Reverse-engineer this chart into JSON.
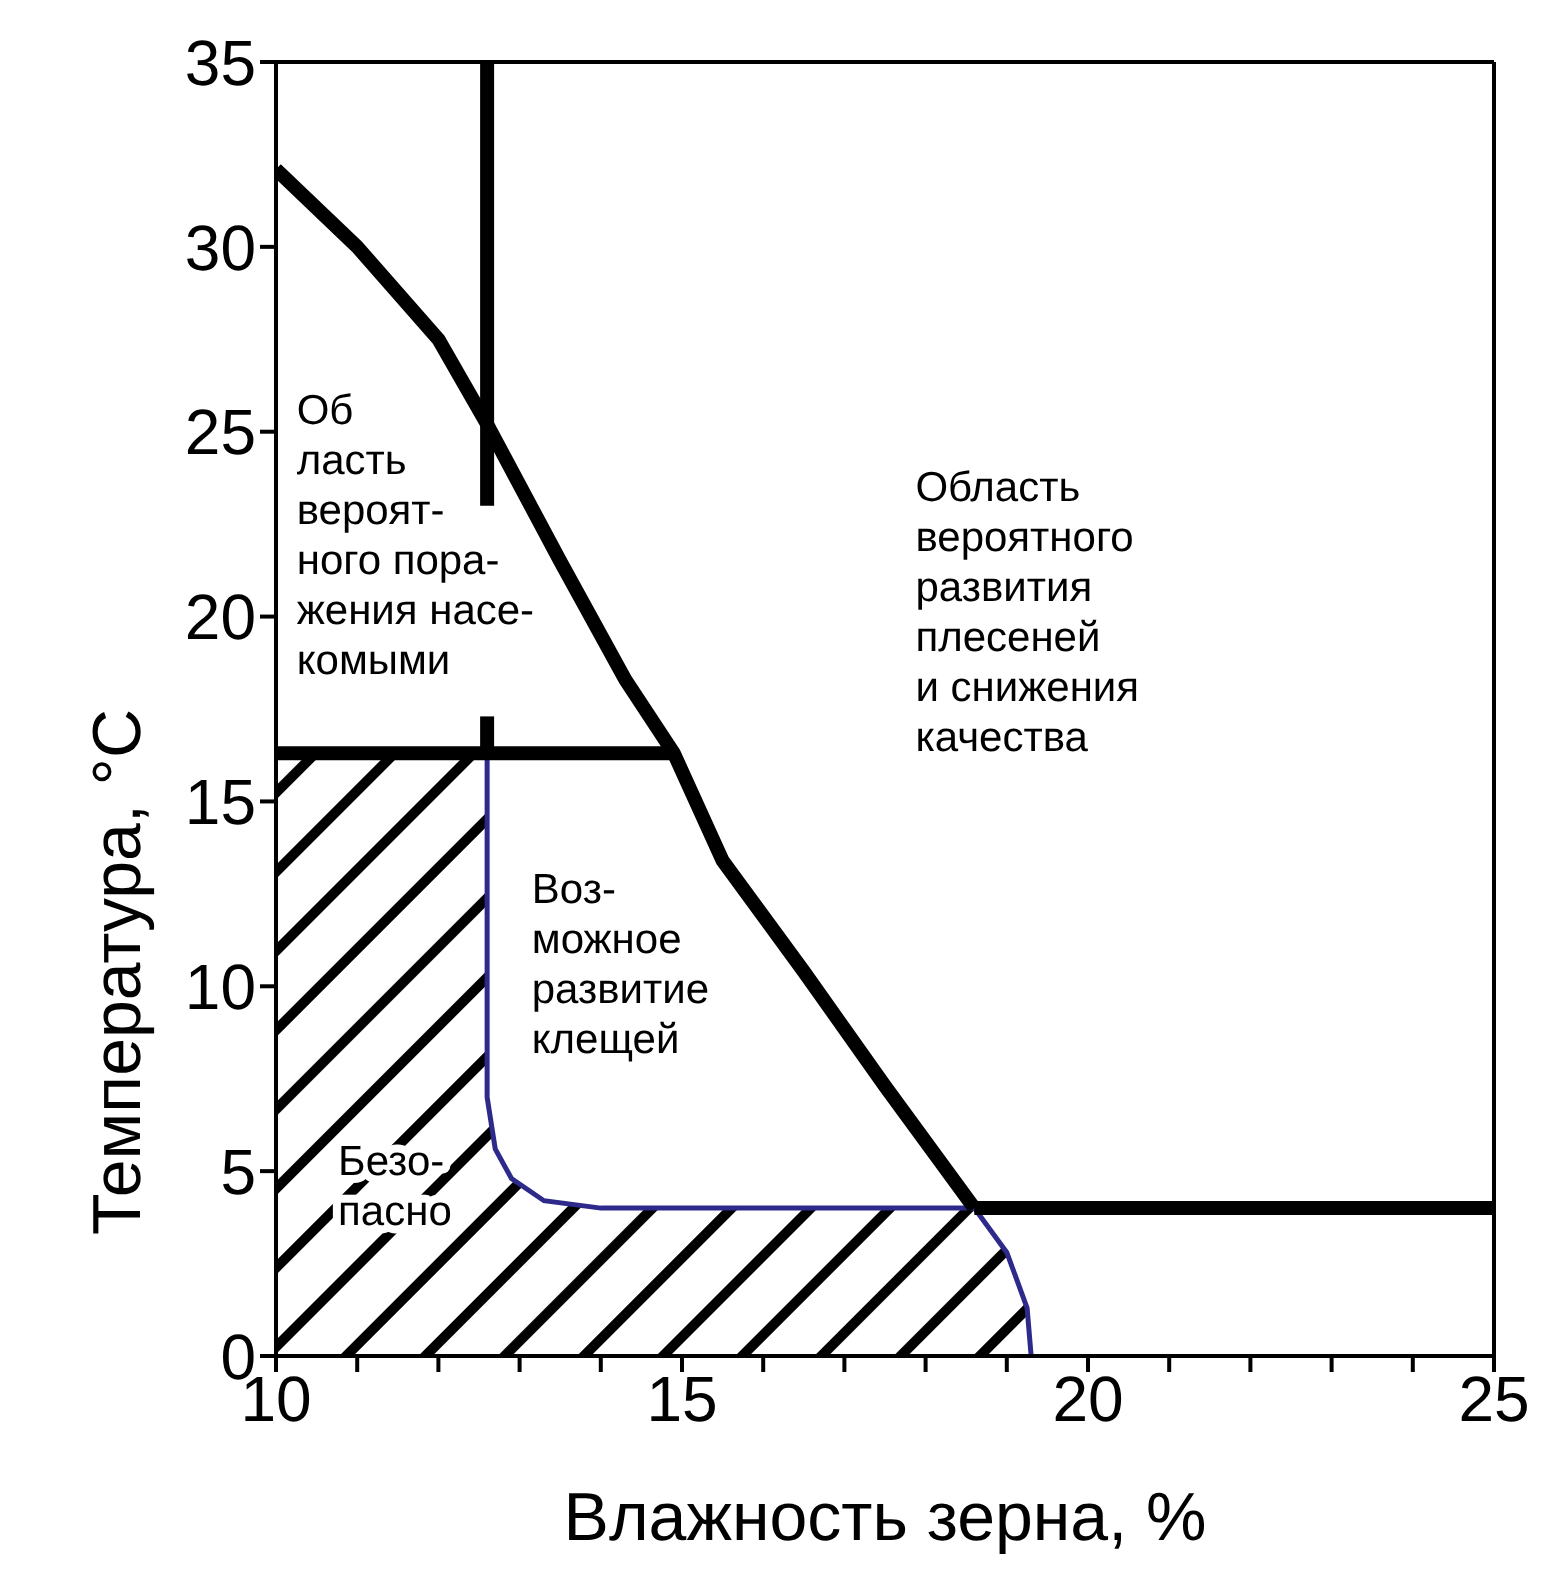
{
  "chart_data": {
    "type": "line",
    "xlabel": "Влажность зерна, %",
    "ylabel": "Температура, °C",
    "xlim": [
      10,
      25
    ],
    "ylim": [
      0,
      35
    ],
    "xticks": [
      10,
      {
        "value": 11,
        "label": null
      },
      {
        "value": 12,
        "label": null
      },
      {
        "value": 13,
        "label": null
      },
      {
        "value": 14,
        "label": null
      },
      15,
      {
        "value": 16,
        "label": null
      },
      {
        "value": 17,
        "label": null
      },
      {
        "value": 18,
        "label": null
      },
      {
        "value": 19,
        "label": null
      },
      20,
      {
        "value": 21,
        "label": null
      },
      {
        "value": 22,
        "label": null
      },
      {
        "value": 23,
        "label": null
      },
      {
        "value": 24,
        "label": null
      },
      25
    ],
    "yticks": [
      0,
      5,
      10,
      15,
      20,
      25,
      30,
      35
    ],
    "marker": "none",
    "line_style": "solid",
    "series": [
      {
        "type": "area",
        "color": "#2e2a8c",
        "x": [
          10,
          12.6,
          12.6,
          12.7,
          12.9,
          13.3,
          14,
          18.6,
          19.0,
          19.25,
          19.3
        ],
        "values": [
          16.3,
          16.3,
          7,
          5.6,
          4.8,
          4.2,
          4,
          4,
          2.8,
          1.3,
          0
        ]
      },
      {
        "color": "#000000",
        "x": [
          10,
          11,
          12,
          12.6,
          13.5,
          14.3,
          14.9,
          15.5,
          16.5,
          17.5,
          18.6
        ],
        "values": [
          32.1,
          30.0,
          27.5,
          25.2,
          21.5,
          18.3,
          16.3,
          13.4,
          10.4,
          7.3,
          4
        ]
      },
      {
        "color": "#000000",
        "x": [
          12.6,
          12.6
        ],
        "values": [
          35,
          23
        ]
      },
      {
        "color": "#000000",
        "x": [
          12.6,
          12.6
        ],
        "values": [
          17.3,
          16.3
        ]
      },
      {
        "color": "#000000",
        "x": [
          10,
          14.9
        ],
        "values": [
          16.3,
          16.3
        ]
      },
      {
        "color": "#000000",
        "x": [
          18.6,
          25
        ],
        "values": [
          4,
          4
        ]
      }
    ],
    "annotations": [
      "Об\nласть\nвероят-\nного пора-\nжения насе-\nкомыми",
      "Область\nвероятного\nразвития\nплесеней\nи снижения\nкачества",
      "Воз-\nможное\nразвитие\nклещей",
      "Безо-\nпасно"
    ]
  }
}
